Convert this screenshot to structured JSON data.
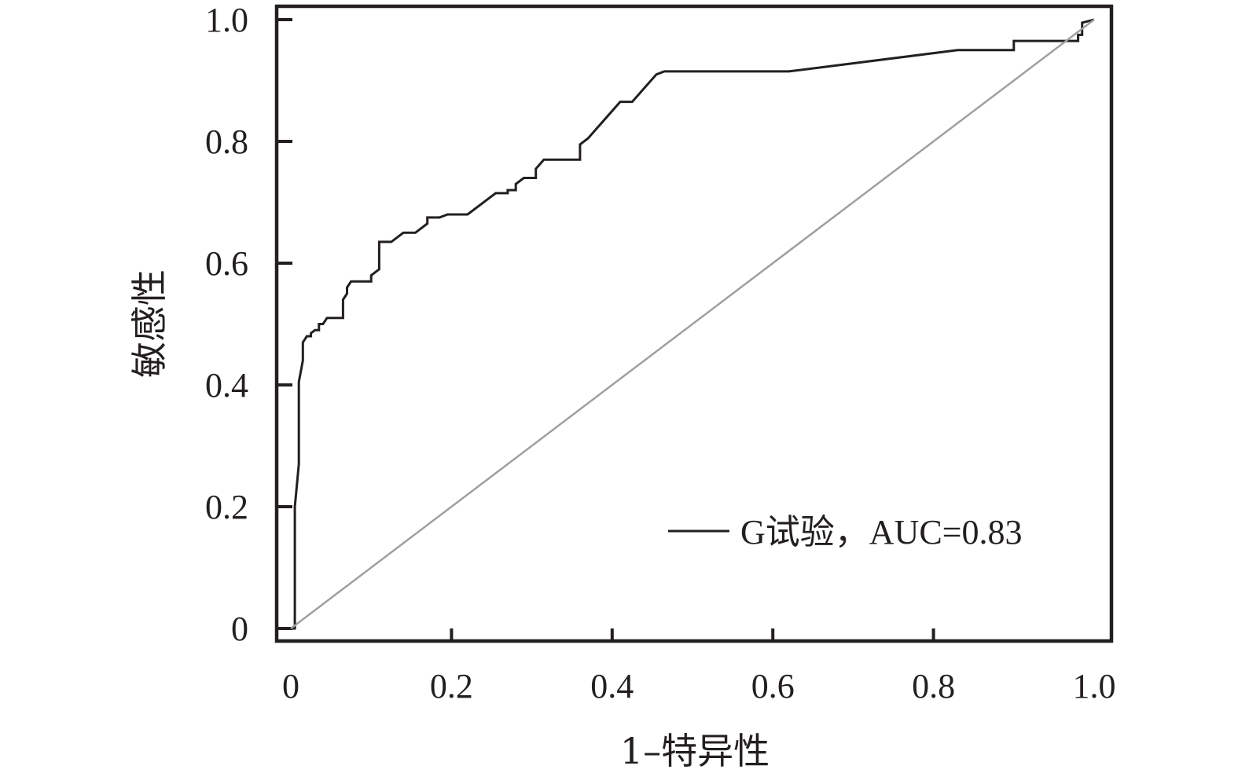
{
  "chart_data": {
    "type": "line",
    "title": "",
    "xlabel": "1–特异性",
    "ylabel": "敏感性",
    "xlim": [
      0,
      1.0
    ],
    "ylim": [
      0,
      1.0
    ],
    "x_ticks": [
      0,
      0.2,
      0.4,
      0.6,
      0.8,
      1.0
    ],
    "x_tick_labels": [
      "0",
      "0.2",
      "0.4",
      "0.6",
      "0.8",
      "1.0"
    ],
    "y_ticks": [
      0,
      0.2,
      0.4,
      0.6,
      0.8,
      1.0
    ],
    "y_tick_labels": [
      "0",
      "0.2",
      "0.4",
      "0.6",
      "0.8",
      "1.0"
    ],
    "grid": false,
    "legend_position": "bottom-right",
    "legend_label": "G试验，AUC=0.83",
    "series": [
      {
        "name": "G试验，AUC=0.83",
        "color": "#231f20",
        "x": [
          0,
          0.005,
          0.005,
          0.01,
          0.01,
          0.015,
          0.015,
          0.02,
          0.02,
          0.025,
          0.025,
          0.03,
          0.035,
          0.035,
          0.04,
          0.045,
          0.045,
          0.065,
          0.065,
          0.07,
          0.07,
          0.075,
          0.075,
          0.1,
          0.1,
          0.11,
          0.11,
          0.125,
          0.14,
          0.155,
          0.17,
          0.17,
          0.185,
          0.195,
          0.22,
          0.255,
          0.27,
          0.27,
          0.28,
          0.28,
          0.29,
          0.305,
          0.305,
          0.315,
          0.36,
          0.36,
          0.37,
          0.41,
          0.425,
          0.455,
          0.465,
          0.505,
          0.62,
          0.83,
          0.9,
          0.9,
          0.98,
          0.98,
          0.985,
          0.985,
          1.0
        ],
        "y": [
          0,
          0,
          0.2,
          0.27,
          0.405,
          0.44,
          0.47,
          0.48,
          0.48,
          0.48,
          0.485,
          0.49,
          0.49,
          0.5,
          0.5,
          0.51,
          0.51,
          0.51,
          0.54,
          0.55,
          0.56,
          0.57,
          0.57,
          0.57,
          0.58,
          0.59,
          0.635,
          0.635,
          0.65,
          0.65,
          0.665,
          0.675,
          0.675,
          0.68,
          0.68,
          0.715,
          0.715,
          0.72,
          0.72,
          0.73,
          0.74,
          0.74,
          0.755,
          0.77,
          0.77,
          0.795,
          0.805,
          0.865,
          0.865,
          0.91,
          0.915,
          0.915,
          0.915,
          0.95,
          0.95,
          0.965,
          0.965,
          0.975,
          0.975,
          0.995,
          1.0
        ]
      },
      {
        "name": "",
        "color": "#a0a0a0",
        "x": [
          0,
          1.0
        ],
        "y": [
          0,
          1.0
        ]
      }
    ]
  }
}
